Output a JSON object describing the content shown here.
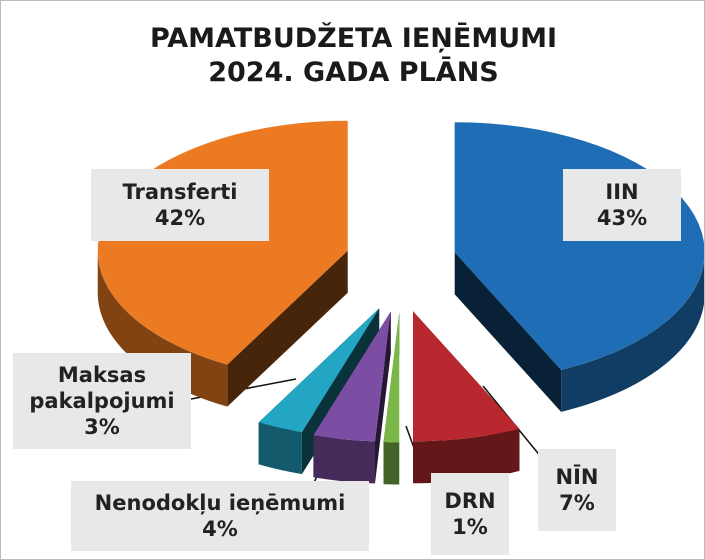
{
  "chart_data": {
    "type": "pie",
    "title": "PAMATBUDŽETA IEŅĒMUMI",
    "subtitle": "2024. GADA PLĀNS",
    "categories": [
      "IIN",
      "NĪN",
      "DRN",
      "Nenodokļu ieņēmumi",
      "Maksas pakalpojumi",
      "Transferti"
    ],
    "values": [
      43,
      7,
      1,
      4,
      3,
      42
    ],
    "value_labels": [
      "43%",
      "7%",
      "1%",
      "4%",
      "3%",
      "42%"
    ],
    "colors": [
      "#1f6db5",
      "#b8282e",
      "#7ab648",
      "#7b4ea3",
      "#22a6c4",
      "#ec7a22"
    ]
  }
}
